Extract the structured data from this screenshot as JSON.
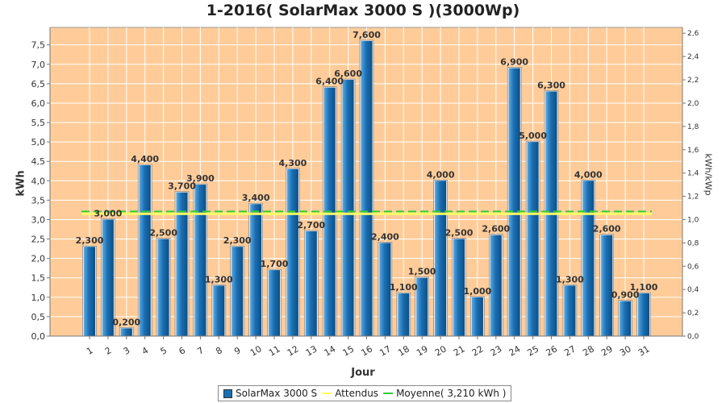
{
  "chart_data": {
    "type": "bar",
    "title": "1-2016( SolarMax 3000 S )(3000Wp)",
    "xlabel": "Jour",
    "ylabel": "kWh",
    "ylabel_right": "kWh/kWp",
    "categories": [
      "1",
      "2",
      "3",
      "4",
      "5",
      "6",
      "7",
      "8",
      "9",
      "10",
      "11",
      "12",
      "13",
      "14",
      "15",
      "16",
      "17",
      "18",
      "19",
      "20",
      "21",
      "22",
      "23",
      "24",
      "25",
      "26",
      "27",
      "28",
      "29",
      "30",
      "31"
    ],
    "series": [
      {
        "name": "SolarMax 3000 S",
        "values": [
          2.3,
          3.0,
          0.2,
          4.4,
          2.5,
          3.7,
          3.9,
          1.3,
          2.3,
          3.4,
          1.7,
          4.3,
          2.7,
          6.4,
          6.6,
          7.6,
          2.4,
          1.1,
          1.5,
          4.0,
          2.5,
          1.0,
          2.6,
          6.9,
          5.0,
          6.3,
          1.3,
          4.0,
          2.6,
          0.9,
          1.1
        ],
        "data_labels": [
          "2,300",
          "3,000",
          "0,200",
          "4,400",
          "2,500",
          "3,700",
          "3,900",
          "1,300",
          "2,300",
          "3,400",
          "1,700",
          "4,300",
          "2,700",
          "6,400",
          "6,600",
          "7,600",
          "2,400",
          "1,100",
          "1,500",
          "4,000",
          "2,500",
          "1,000",
          "2,600",
          "6,900",
          "5,000",
          "6,300",
          "1,300",
          "4,000",
          "2,600",
          "0,900",
          "1,100"
        ]
      }
    ],
    "reference_lines": [
      {
        "name": "Attendus",
        "value": 3.15,
        "color": "#ffff66"
      },
      {
        "name": "Moyenne( 3,210 kWh )",
        "value": 3.21,
        "color": "#33cc33"
      }
    ],
    "ylim": [
      0,
      7.95
    ],
    "yticks": [
      0,
      0.5,
      1.0,
      1.5,
      2.0,
      2.5,
      3.0,
      3.5,
      4.0,
      4.5,
      5.0,
      5.5,
      6.0,
      6.5,
      7.0,
      7.5
    ],
    "ytick_labels": [
      "0,0",
      "0,5",
      "1,0",
      "1,5",
      "2,0",
      "2,5",
      "3,0",
      "3,5",
      "4,0",
      "4,5",
      "5,0",
      "5,5",
      "6,0",
      "6,5",
      "7,0",
      "7,5"
    ],
    "ylim_right": [
      0,
      2.65
    ],
    "yticks_right": [
      0,
      0.2,
      0.4,
      0.6,
      0.8,
      1.0,
      1.2,
      1.4,
      1.6,
      1.8,
      2.0,
      2.2,
      2.4,
      2.6
    ],
    "ytick_labels_right": [
      "0,0",
      "0,2",
      "0,4",
      "0,6",
      "0,8",
      "1,0",
      "1,2",
      "1,4",
      "1,6",
      "1,8",
      "2,0",
      "2,2",
      "2,4",
      "2,6"
    ],
    "grid": true,
    "legend_position": "bottom",
    "colors": {
      "plot_background": "#ffcc99",
      "bar": "#1a6fb3",
      "grid": "#ffffff"
    }
  }
}
